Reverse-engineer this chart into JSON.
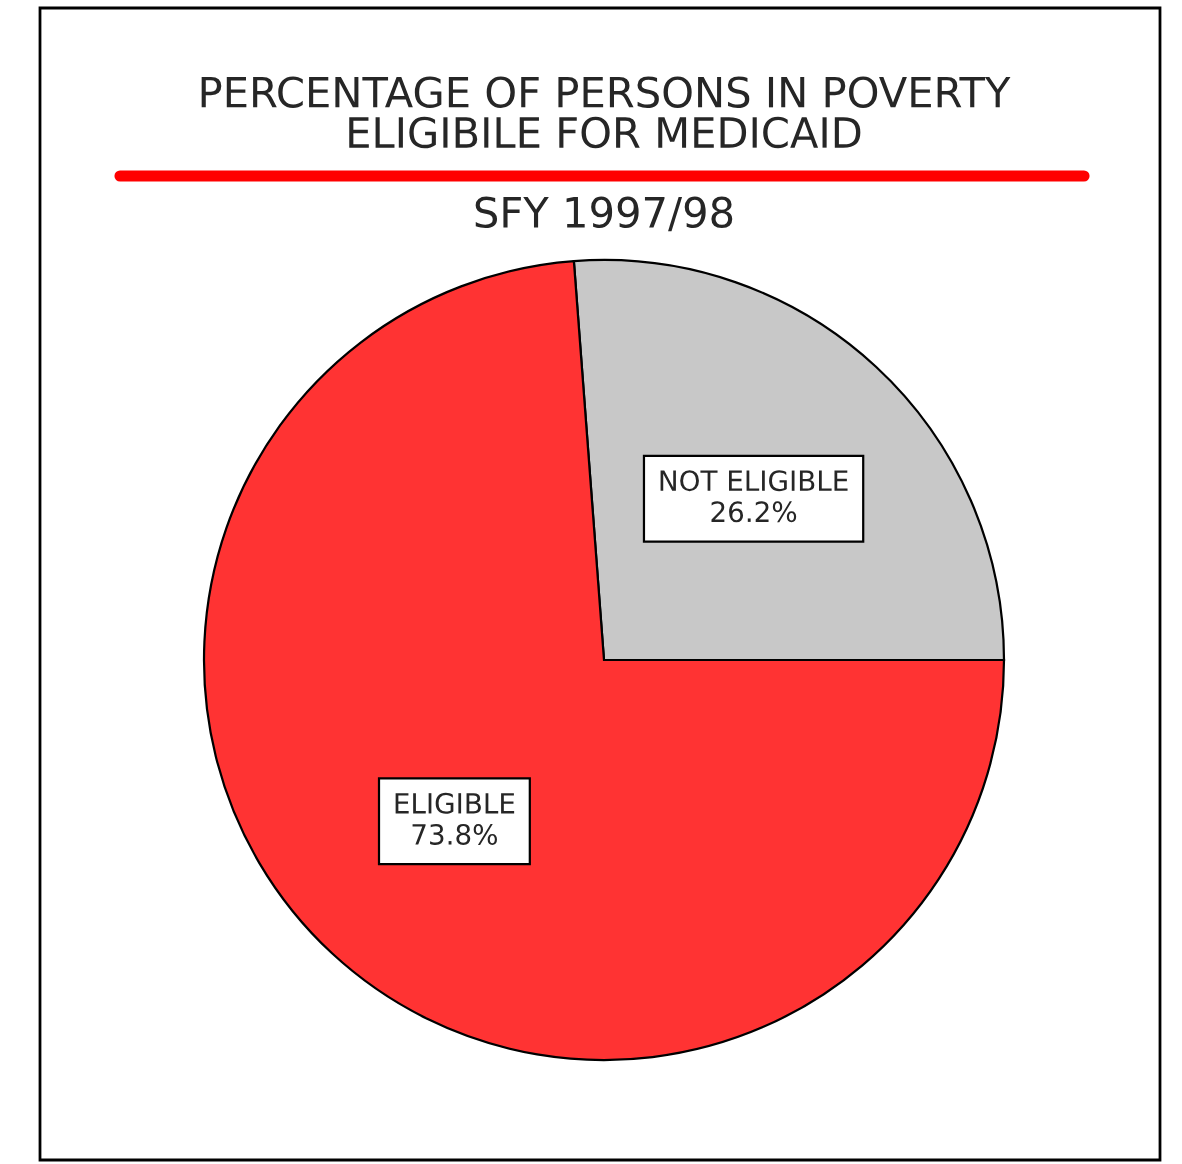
{
  "chart_data": {
    "type": "pie",
    "title": "PERCENTAGE OF PERSONS IN POVERTY\nELIGIBILE FOR MEDICAID",
    "subtitle": "SFY 1997/98",
    "categories": [
      "NOT ELIGIBLE",
      "ELIGIBLE"
    ],
    "values": [
      26.2,
      73.8
    ],
    "value_labels": [
      "26.2%",
      "73.8%"
    ],
    "colors": [
      "#c8c8c8",
      "#ff3333"
    ]
  }
}
